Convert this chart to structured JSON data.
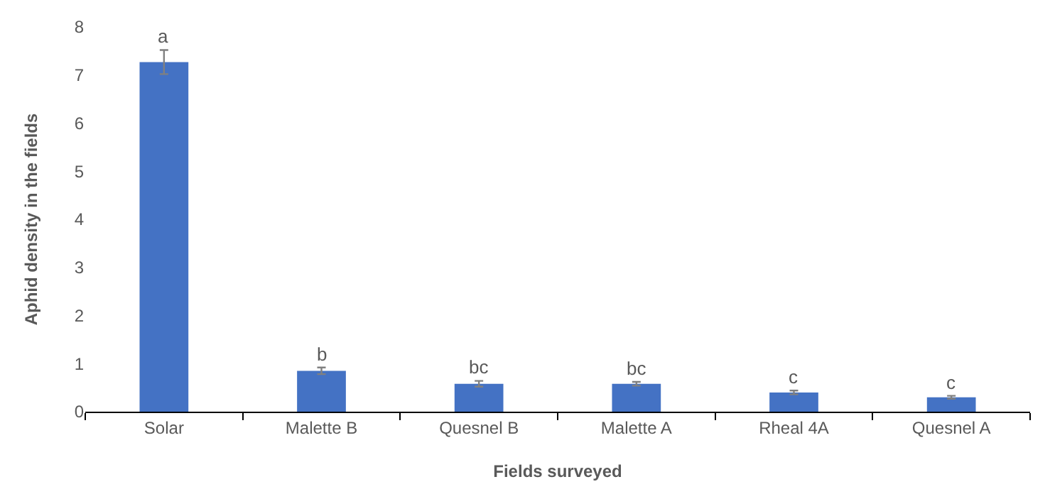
{
  "chart_data": {
    "type": "bar",
    "xlabel": "Fields surveyed",
    "ylabel": "Aphid density in the fields",
    "categories": [
      "Solar",
      "Malette B",
      "Quesnel B",
      "Malette A",
      "Rheal 4A",
      "Quesnel A"
    ],
    "values": [
      7.27,
      0.85,
      0.58,
      0.58,
      0.4,
      0.3
    ],
    "errors": [
      0.25,
      0.07,
      0.06,
      0.04,
      0.04,
      0.03
    ],
    "color": "#4472c4",
    "ylim": [
      0,
      8
    ],
    "yticks": [
      0,
      1,
      2,
      3,
      4,
      5,
      6,
      7,
      8
    ],
    "annotations": [
      {
        "text": "a",
        "x": "Solar",
        "y": 7.52
      },
      {
        "text": "b",
        "x": "Malette B",
        "y": 0.92
      },
      {
        "text": "bc",
        "x": "Quesnel B",
        "y": 0.64
      },
      {
        "text": "bc",
        "x": "Malette A",
        "y": 0.62
      },
      {
        "text": "c",
        "x": "Rheal 4A",
        "y": 0.44
      },
      {
        "text": "c",
        "x": "Quesnel A",
        "y": 0.33
      }
    ]
  }
}
